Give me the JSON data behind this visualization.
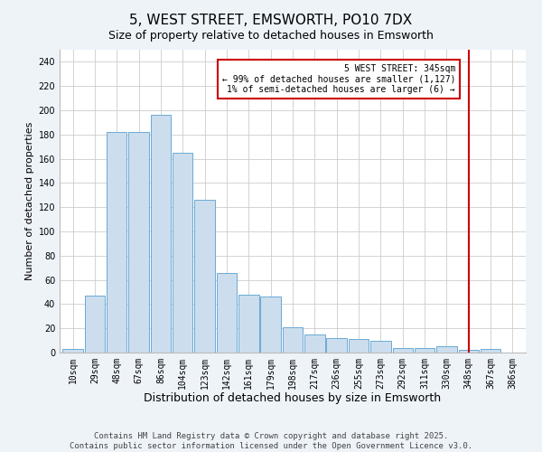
{
  "title": "5, WEST STREET, EMSWORTH, PO10 7DX",
  "subtitle": "Size of property relative to detached houses in Emsworth",
  "xlabel": "Distribution of detached houses by size in Emsworth",
  "ylabel": "Number of detached properties",
  "bar_labels": [
    "10sqm",
    "29sqm",
    "48sqm",
    "67sqm",
    "86sqm",
    "104sqm",
    "123sqm",
    "142sqm",
    "161sqm",
    "179sqm",
    "198sqm",
    "217sqm",
    "236sqm",
    "255sqm",
    "273sqm",
    "292sqm",
    "311sqm",
    "330sqm",
    "348sqm",
    "367sqm",
    "386sqm"
  ],
  "bar_values": [
    3,
    47,
    182,
    182,
    196,
    165,
    126,
    66,
    48,
    46,
    21,
    15,
    12,
    11,
    10,
    4,
    4,
    5,
    2,
    3,
    0
  ],
  "bar_color": "#ccdded",
  "bar_edge_color": "#6aaad4",
  "vline_x_index": 18,
  "vline_color": "#cc0000",
  "annotation_title": "5 WEST STREET: 345sqm",
  "annotation_line1": "← 99% of detached houses are smaller (1,127)",
  "annotation_line2": "1% of semi-detached houses are larger (6) →",
  "annotation_box_color": "#cc0000",
  "ylim": [
    0,
    250
  ],
  "yticks": [
    0,
    20,
    40,
    60,
    80,
    100,
    120,
    140,
    160,
    180,
    200,
    220,
    240
  ],
  "background_color": "#eef3f8",
  "plot_bg_color": "#ffffff",
  "grid_color": "#cccccc",
  "footer_line1": "Contains HM Land Registry data © Crown copyright and database right 2025.",
  "footer_line2": "Contains public sector information licensed under the Open Government Licence v3.0.",
  "title_fontsize": 11,
  "subtitle_fontsize": 9,
  "xlabel_fontsize": 9,
  "ylabel_fontsize": 8,
  "tick_fontsize": 7,
  "footer_fontsize": 6.5,
  "annotation_fontsize": 7
}
